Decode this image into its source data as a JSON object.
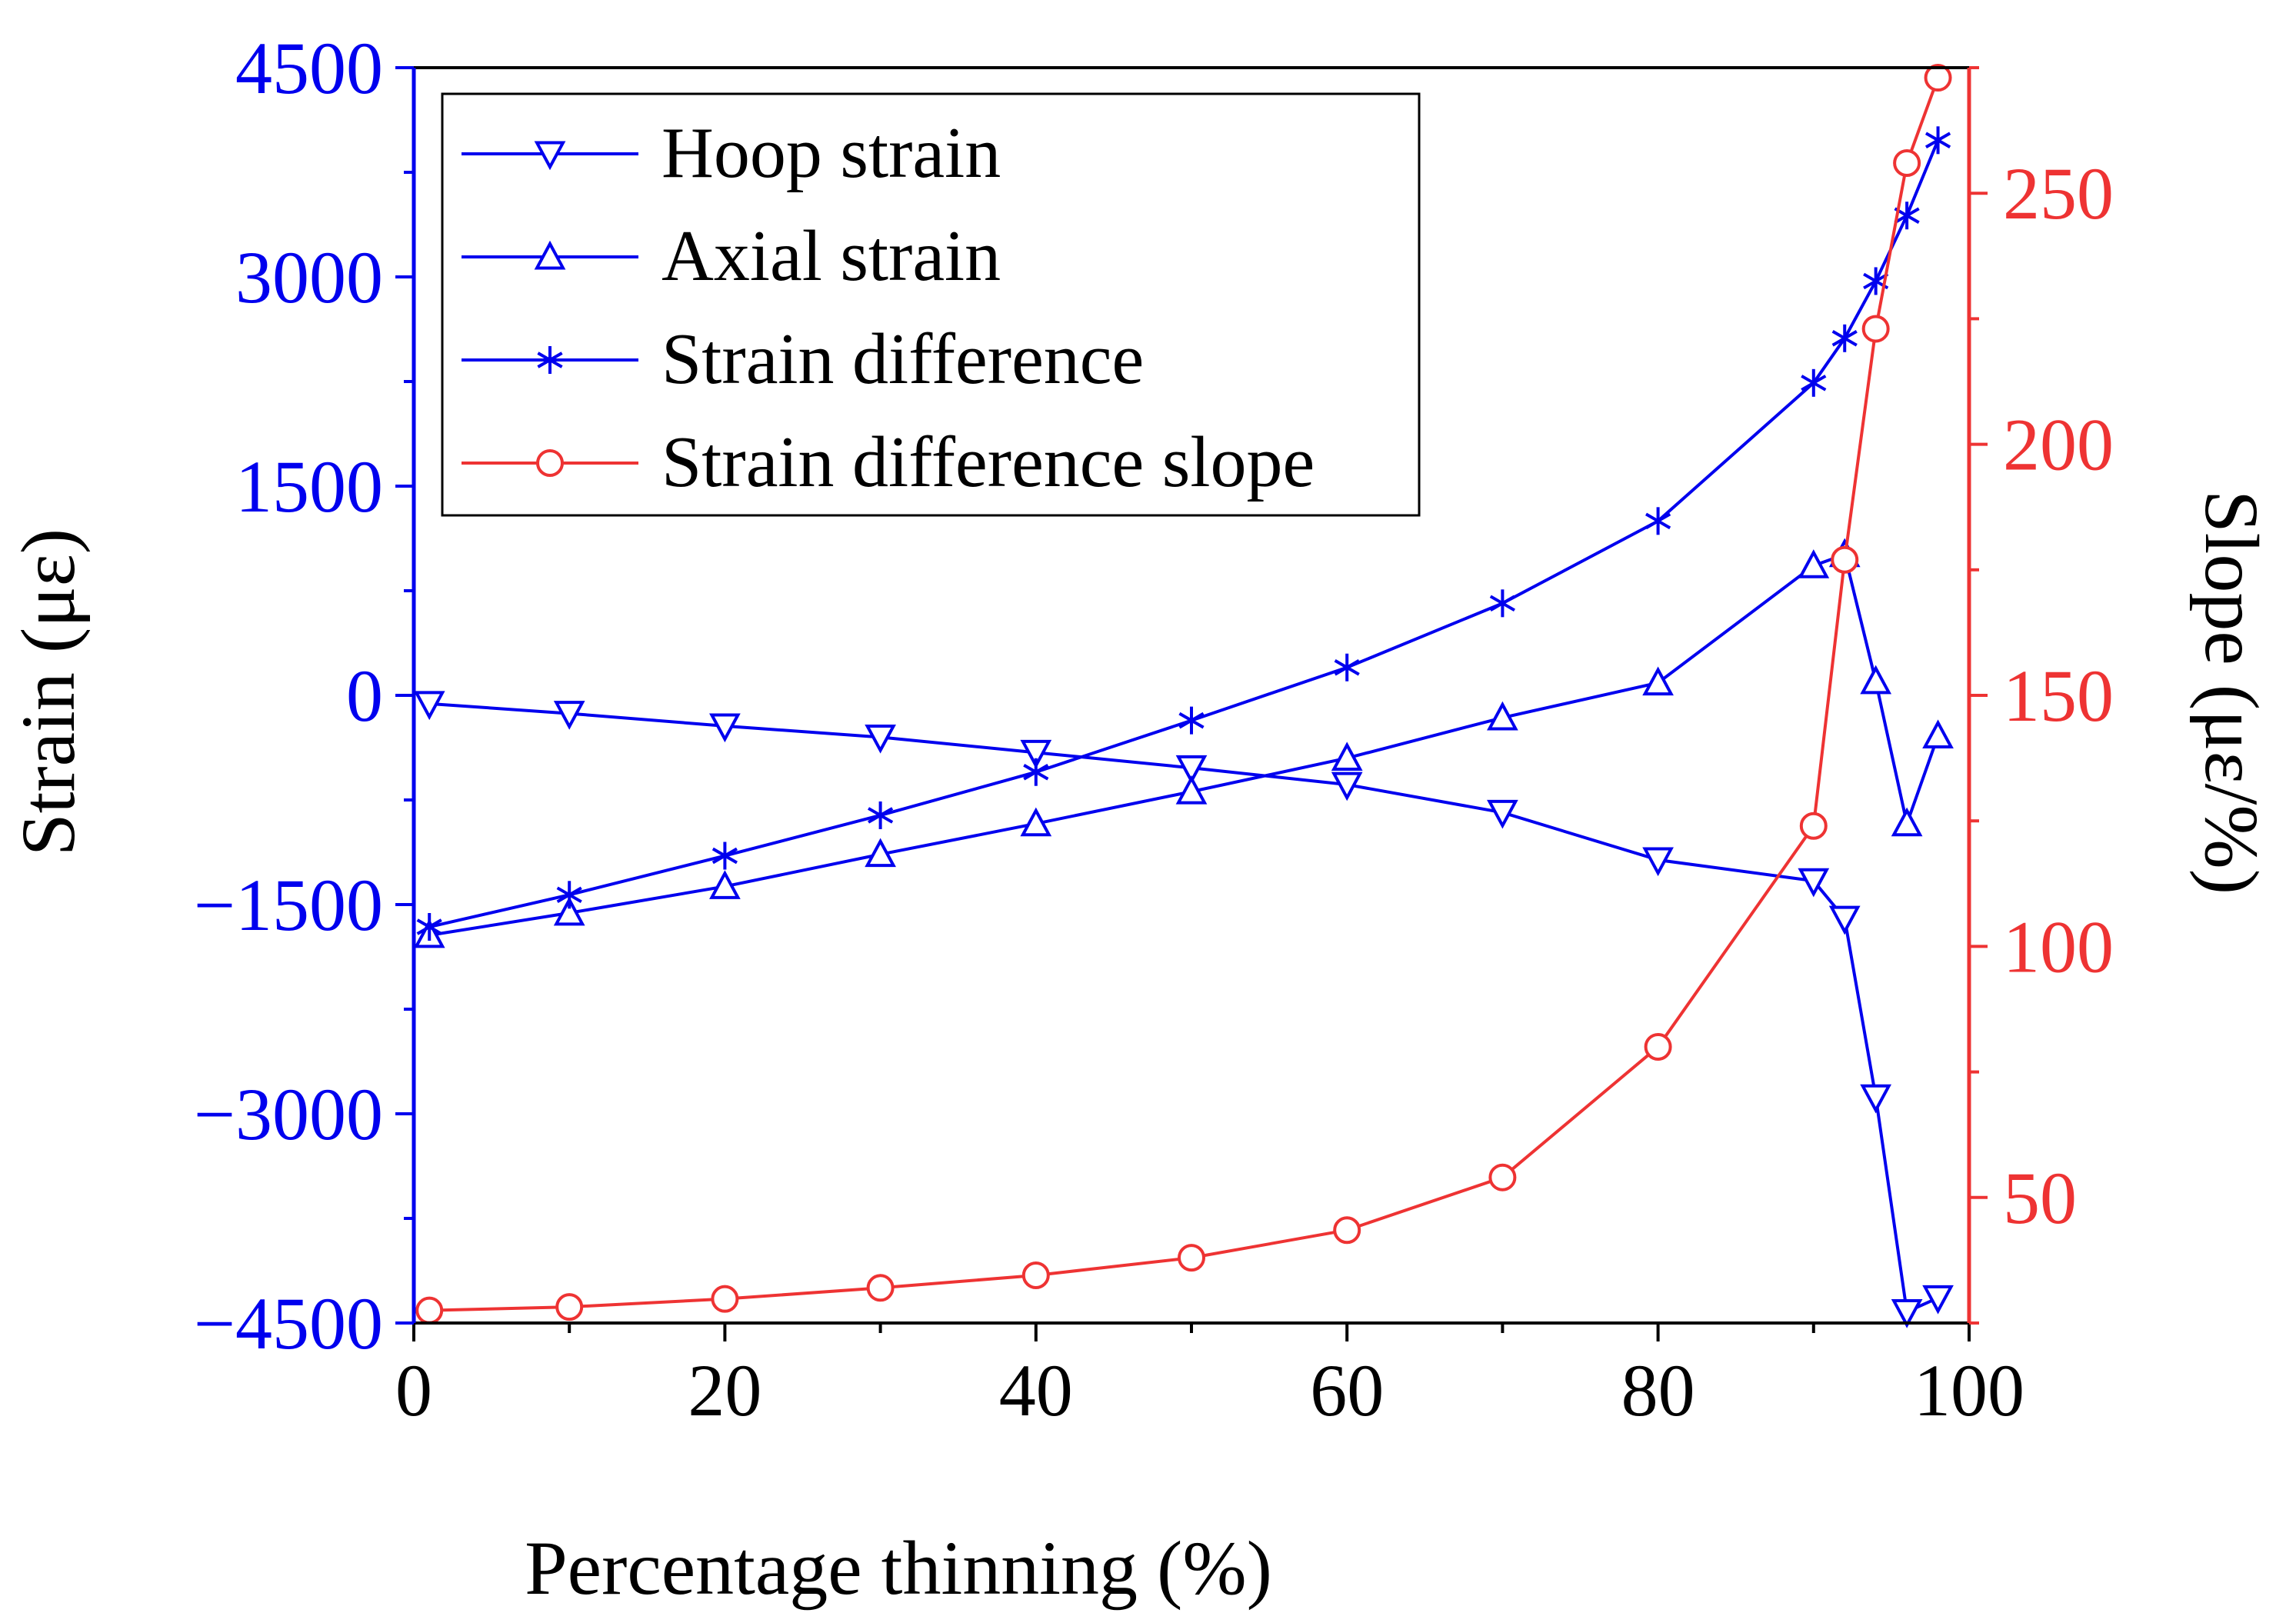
{
  "chart_data": {
    "type": "line",
    "xlabel": "Percentage thinning (%)",
    "ylabel_left": "Strain (με)",
    "ylabel_right": "Slope (με/%)",
    "xlim": [
      0,
      100
    ],
    "ylim_left": [
      -4500,
      4500
    ],
    "ylim_right": [
      25,
      275
    ],
    "x_ticks": [
      0,
      20,
      40,
      60,
      80,
      100
    ],
    "y_left_ticks": [
      4500,
      3000,
      1500,
      0,
      -1500,
      -3000,
      -4500
    ],
    "y_left_tick_labels": [
      "4500",
      "3000",
      "1500",
      "0",
      "−1500",
      "−3000",
      "−4500"
    ],
    "y_right_ticks": [
      250,
      200,
      150,
      100,
      50
    ],
    "grid": false,
    "legend_position": "top-left",
    "colors": {
      "left_axis": "#0000ee",
      "right_axis": "#ee3333",
      "strain_series": "#0000ee",
      "slope_series": "#ee3333"
    },
    "series": [
      {
        "name": "Hoop strain",
        "axis": "left",
        "marker": "triangle-down",
        "color": "#0000ee",
        "x": [
          1,
          10,
          20,
          30,
          40,
          50,
          60,
          70,
          80,
          90,
          92,
          94,
          96,
          98
        ],
        "y": [
          -60,
          -130,
          -220,
          -300,
          -410,
          -520,
          -640,
          -840,
          -1180,
          -1330,
          -1600,
          -2880,
          -4420,
          -4320
        ]
      },
      {
        "name": "Axial strain",
        "axis": "left",
        "marker": "triangle-up",
        "color": "#0000ee",
        "x": [
          1,
          10,
          20,
          30,
          40,
          50,
          60,
          70,
          80,
          90,
          92,
          94,
          96,
          98
        ],
        "y": [
          -1720,
          -1560,
          -1370,
          -1140,
          -920,
          -690,
          -450,
          -160,
          90,
          930,
          1010,
          100,
          -920,
          -290
        ]
      },
      {
        "name": "Strain difference",
        "axis": "left",
        "marker": "asterisk",
        "color": "#0000ee",
        "x": [
          1,
          10,
          20,
          30,
          40,
          50,
          60,
          70,
          80,
          90,
          92,
          94,
          96,
          98
        ],
        "y": [
          -1660,
          -1430,
          -1150,
          -860,
          -550,
          -180,
          200,
          660,
          1250,
          2240,
          2560,
          2970,
          3440,
          3980
        ]
      },
      {
        "name": "Strain difference slope",
        "axis": "right",
        "marker": "circle",
        "color": "#ee3333",
        "x": [
          1,
          10,
          20,
          30,
          40,
          50,
          60,
          70,
          80,
          90,
          92,
          94,
          96,
          98
        ],
        "y": [
          27.5,
          28.2,
          29.8,
          32,
          34.5,
          38,
          43.5,
          54,
          80,
          124,
          177,
          223,
          256,
          273
        ]
      }
    ]
  }
}
